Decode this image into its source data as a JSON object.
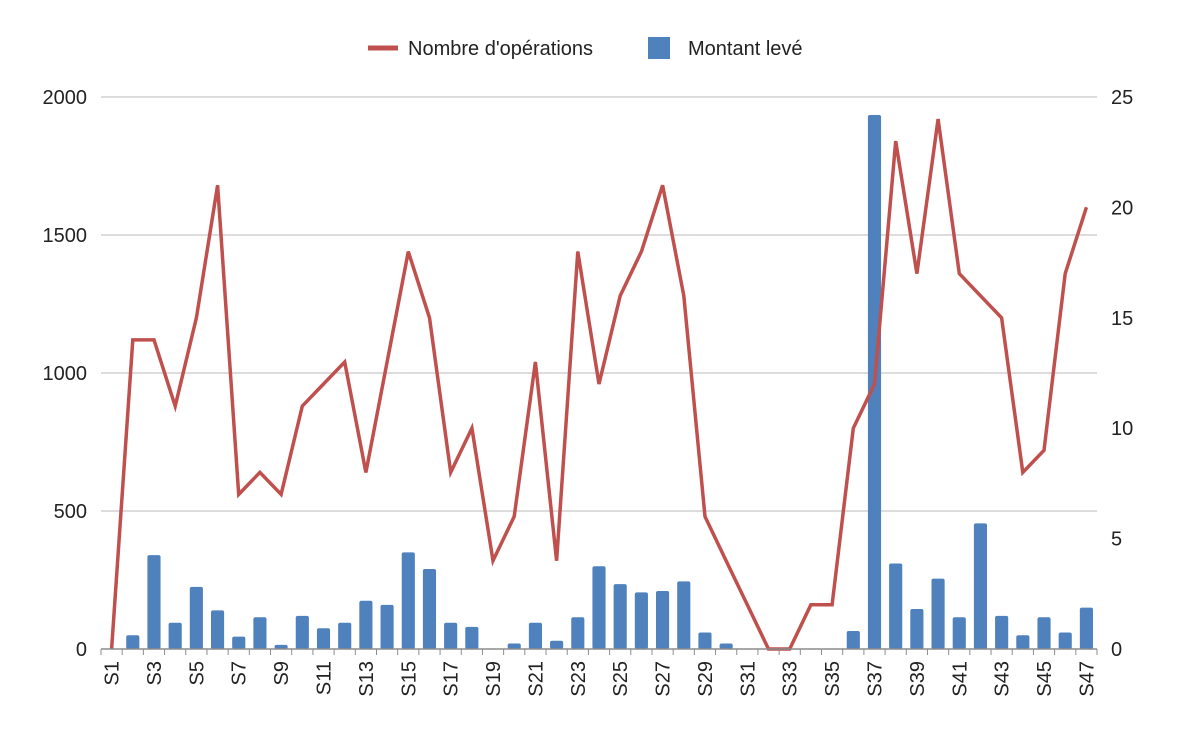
{
  "chart_data": {
    "type": "bar+line",
    "legend": {
      "line_label": "Nombre d'opérations",
      "bar_label": "Montant levé",
      "placement": "top-center"
    },
    "colors": {
      "bar": "#4F81BD",
      "line": "#C0504D",
      "grid": "#C8C8C8",
      "axis": "#8C8C8C"
    },
    "categories": [
      "S1",
      "S2",
      "S3",
      "S4",
      "S5",
      "S6",
      "S7",
      "S8",
      "S9",
      "S10",
      "S11",
      "S12",
      "S13",
      "S14",
      "S15",
      "S16",
      "S17",
      "S18",
      "S19",
      "S20",
      "S21",
      "S22",
      "S23",
      "S24",
      "S25",
      "S26",
      "S27",
      "S28",
      "S29",
      "S30",
      "S31",
      "S32",
      "S33",
      "S34",
      "S35",
      "S36",
      "S37",
      "S38",
      "S39",
      "S40",
      "S41",
      "S42",
      "S43",
      "S44",
      "S45",
      "S46",
      "S47"
    ],
    "x_tick_labels": [
      "S1",
      "S3",
      "S5",
      "S7",
      "S9",
      "S11",
      "S13",
      "S15",
      "S17",
      "S19",
      "S21",
      "S23",
      "S25",
      "S27",
      "S29",
      "S31",
      "S33",
      "S35",
      "S37",
      "S39",
      "S41",
      "S43",
      "S45",
      "S47"
    ],
    "series": [
      {
        "name": "Montant levé",
        "type": "bar",
        "axis": "left",
        "values": [
          0,
          50,
          340,
          95,
          225,
          140,
          45,
          115,
          15,
          120,
          75,
          95,
          175,
          160,
          350,
          290,
          95,
          80,
          0,
          20,
          95,
          30,
          115,
          300,
          235,
          205,
          210,
          245,
          60,
          20,
          0,
          0,
          0,
          0,
          0,
          65,
          1935,
          310,
          145,
          255,
          115,
          455,
          120,
          50,
          115,
          60,
          150
        ]
      },
      {
        "name": "Nombre d'opérations",
        "type": "line",
        "axis": "right",
        "values": [
          0,
          14,
          14,
          11,
          15,
          21,
          7,
          8,
          7,
          11,
          12,
          13,
          8,
          13,
          18,
          15,
          8,
          10,
          4,
          6,
          13,
          4,
          18,
          12,
          16,
          18,
          21,
          16,
          6,
          4,
          2,
          0,
          0,
          2,
          2,
          10,
          12,
          23,
          17,
          24,
          17,
          16,
          15,
          8,
          9,
          17,
          20
        ]
      }
    ],
    "y_left": {
      "min": 0,
      "max": 2000,
      "ticks": [
        0,
        500,
        1000,
        1500,
        2000
      ]
    },
    "y_right": {
      "min": 0,
      "max": 25,
      "ticks": [
        0,
        5,
        10,
        15,
        20,
        25
      ]
    },
    "grid": true,
    "title": "",
    "xlabel": "",
    "ylabel": ""
  }
}
